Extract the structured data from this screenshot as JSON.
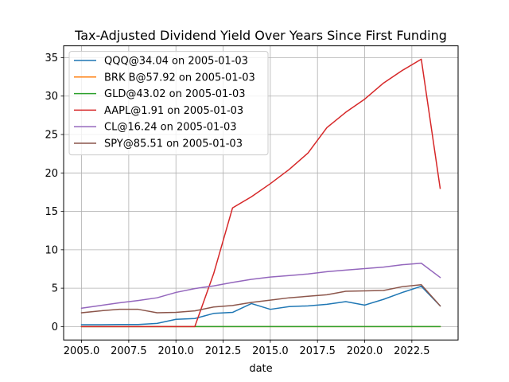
{
  "chart_data": {
    "type": "line",
    "title": "Tax-Adjusted Dividend Yield Over Years Since First Funding",
    "xlabel": "date",
    "ylabel": "",
    "xlim": [
      2004.05,
      2024.95
    ],
    "ylim": [
      -1.74,
      36.54
    ],
    "xticks": [
      2005.0,
      2007.5,
      2010.0,
      2012.5,
      2015.0,
      2017.5,
      2020.0,
      2022.5
    ],
    "xtick_labels": [
      "2005.0",
      "2007.5",
      "2010.0",
      "2012.5",
      "2015.0",
      "2017.5",
      "2020.0",
      "2022.5"
    ],
    "yticks": [
      0,
      5,
      10,
      15,
      20,
      25,
      30,
      35
    ],
    "ytick_labels": [
      "0",
      "5",
      "10",
      "15",
      "20",
      "25",
      "30",
      "35"
    ],
    "grid": true,
    "legend_position": "top-left",
    "x": [
      2005,
      2006,
      2007,
      2008,
      2009,
      2010,
      2011,
      2012,
      2013,
      2014,
      2015,
      2016,
      2017,
      2018,
      2019,
      2020,
      2021,
      2022,
      2023,
      2024
    ],
    "series": [
      {
        "name": "QQQ@34.04 on 2005-01-03",
        "color": "#1f77b4",
        "values": [
          0.25,
          0.25,
          0.28,
          0.28,
          0.42,
          0.95,
          1.05,
          1.72,
          1.85,
          3.0,
          2.25,
          2.6,
          2.7,
          2.9,
          3.25,
          2.8,
          3.55,
          4.45,
          5.25,
          2.7
        ]
      },
      {
        "name": "BRK B@57.92 on 2005-01-03",
        "color": "#ff7f0e",
        "values": [
          0,
          0,
          0,
          0,
          0,
          0,
          0,
          0,
          0,
          0,
          0,
          0,
          0,
          0,
          0,
          0,
          0,
          0,
          0,
          0
        ]
      },
      {
        "name": "GLD@43.02 on 2005-01-03",
        "color": "#2ca02c",
        "values": [
          0,
          0,
          0,
          0,
          0,
          0,
          0,
          0,
          0,
          0,
          0,
          0,
          0,
          0,
          0,
          0,
          0,
          0,
          0,
          0
        ]
      },
      {
        "name": "AAPL@1.91 on 2005-01-03",
        "color": "#d62728",
        "values": [
          0,
          0,
          0,
          0,
          0,
          0,
          0,
          6.9,
          15.45,
          16.9,
          18.6,
          20.45,
          22.6,
          25.9,
          27.9,
          29.6,
          31.7,
          33.35,
          34.8,
          18.0
        ]
      },
      {
        "name": "CL@16.24 on 2005-01-03",
        "color": "#9467bd",
        "values": [
          2.4,
          2.75,
          3.1,
          3.4,
          3.75,
          4.45,
          4.95,
          5.3,
          5.75,
          6.15,
          6.45,
          6.65,
          6.85,
          7.15,
          7.35,
          7.55,
          7.75,
          8.05,
          8.25,
          6.4
        ]
      },
      {
        "name": "SPY@85.51 on 2005-01-03",
        "color": "#8c564b",
        "values": [
          1.8,
          2.05,
          2.25,
          2.25,
          1.8,
          1.85,
          2.05,
          2.55,
          2.75,
          3.15,
          3.45,
          3.75,
          3.95,
          4.15,
          4.6,
          4.65,
          4.7,
          5.2,
          5.45,
          2.7
        ]
      }
    ]
  }
}
